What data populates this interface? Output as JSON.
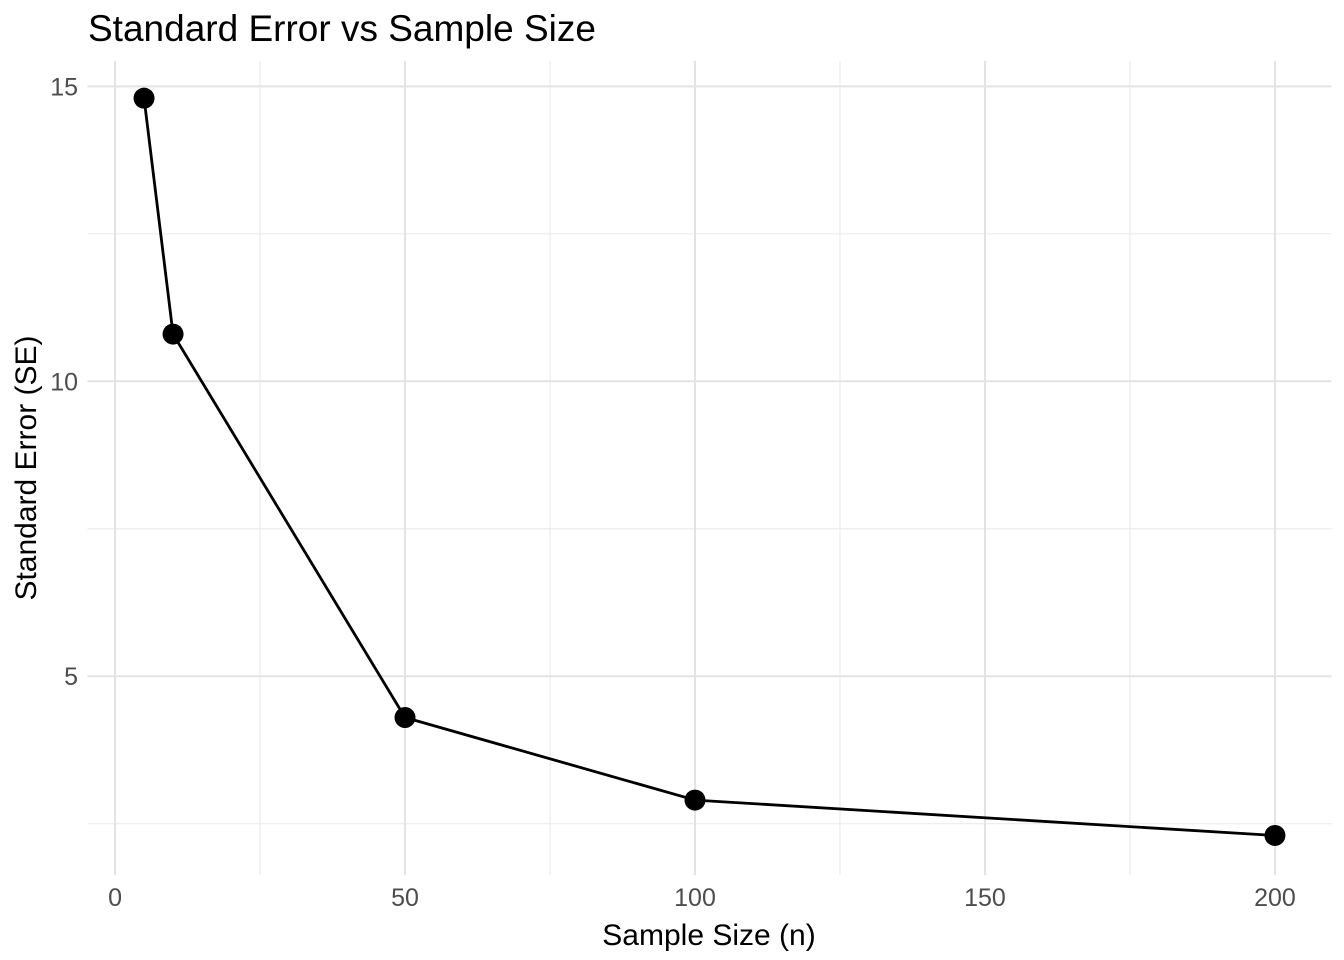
{
  "figure": {
    "title": "Standard Error vs Sample Size"
  },
  "chart_data": {
    "type": "line",
    "title": "Standard Error vs Sample Size",
    "xlabel": "Sample Size (n)",
    "ylabel": "Standard Error (SE)",
    "series": [
      {
        "name": "standard-error",
        "x": [
          5,
          10,
          50,
          100,
          200
        ],
        "y": [
          14.8,
          10.8,
          4.3,
          2.9,
          2.3
        ]
      }
    ],
    "xlim": [
      -4.75,
      209.75
    ],
    "ylim": [
      1.63,
      15.43
    ],
    "x_ticks": [
      0,
      50,
      100,
      150,
      200
    ],
    "y_ticks": [
      5,
      10,
      15
    ],
    "x_minor_ticks": [
      25,
      75,
      125,
      175
    ],
    "y_minor_ticks": [
      2.5,
      7.5,
      12.5
    ],
    "grid": true,
    "legend": "none",
    "style": {
      "background": "#ffffff",
      "grid_major_color": "#e3e3e3",
      "grid_minor_color": "#ebebeb",
      "line_color": "#000000",
      "point_color": "#000000",
      "point_radius": 10.5,
      "line_width": 2.8,
      "tick_label_color": "#4d4d4d",
      "title_color": "#000000"
    }
  }
}
